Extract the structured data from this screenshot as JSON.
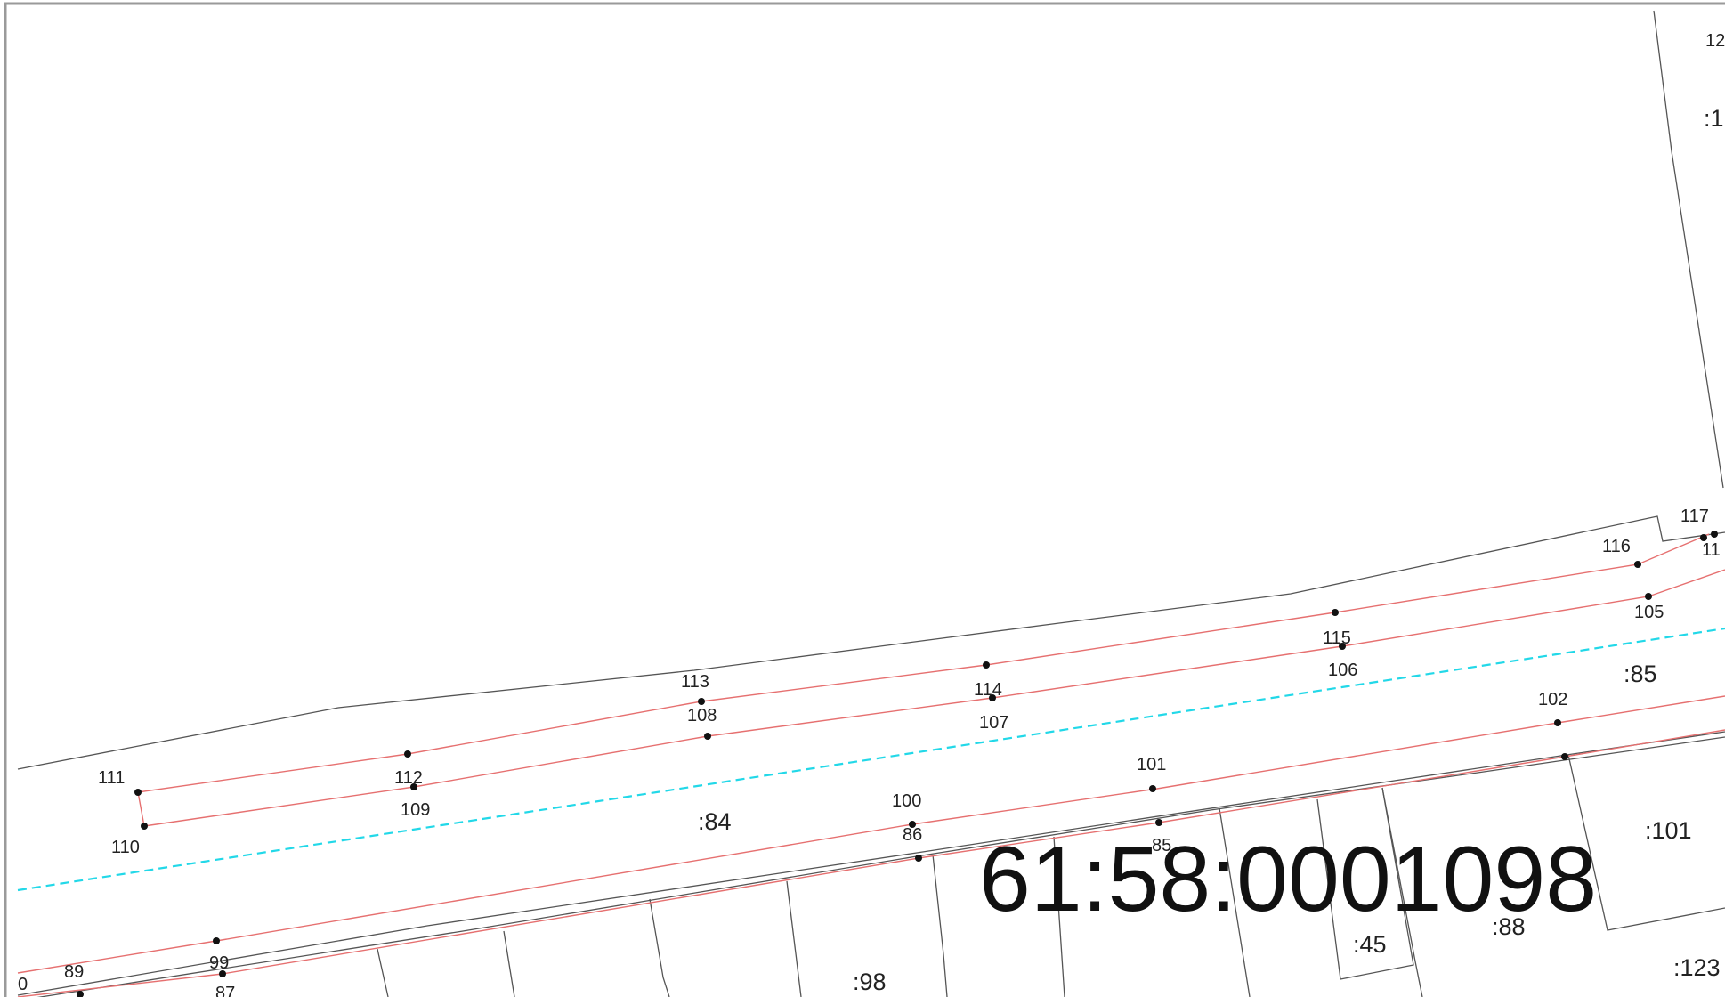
{
  "map": {
    "quarter_number": "61:58:0001098",
    "parcel_labels": [
      {
        "id": "p84",
        "text": ":84"
      },
      {
        "id": "p85",
        "text": ":85"
      },
      {
        "id": "p101",
        "text": ":101"
      },
      {
        "id": "p88",
        "text": ":88"
      },
      {
        "id": "p45",
        "text": ":45"
      },
      {
        "id": "p98",
        "text": ":98"
      },
      {
        "id": "p123",
        "text": ":123"
      },
      {
        "id": "p1-partial",
        "text": ":1"
      }
    ],
    "point_labels": [
      "111",
      "110",
      "112",
      "109",
      "113",
      "108",
      "114",
      "107",
      "115",
      "106",
      "116",
      "105",
      "117",
      "11",
      "102",
      "101",
      "100",
      "86",
      "85",
      "99",
      "89",
      "87",
      "0",
      "12"
    ],
    "colors": {
      "boundary": "#555555",
      "red_line": "#e67070",
      "zone_line": "#22d8e8",
      "frame": "#9a9a9a"
    }
  }
}
